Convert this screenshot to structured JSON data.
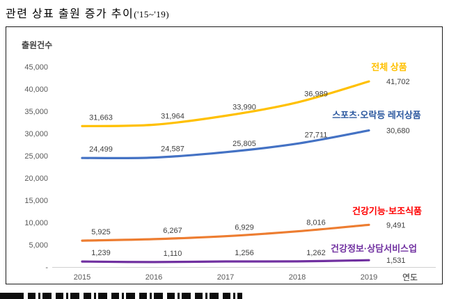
{
  "title": {
    "main": "관련 상표 출원 증가 추이",
    "period": "('15~'19)"
  },
  "chart": {
    "y_axis_title": "출원건수",
    "x_axis_title": "연도"
  },
  "chart_data": {
    "type": "line",
    "title": "관련 상표 출원 증가 추이('15~'19)",
    "xlabel": "연도",
    "ylabel": "출원건수",
    "categories": [
      "2015",
      "2016",
      "2017",
      "2018",
      "2019"
    ],
    "ylim": [
      0,
      45000
    ],
    "y_tick_step": 5000,
    "y_tick_labels": [
      "45,000",
      "40,000",
      "35,000",
      "30,000",
      "25,000",
      "20,000",
      "15,000",
      "10,000",
      "5,000",
      "-"
    ],
    "grid": false,
    "legend_position": "inline-right-of-lines",
    "series": [
      {
        "name": "전체 상품",
        "values": [
          31663,
          31964,
          33990,
          36989,
          41702
        ],
        "line_color": "#FFC000",
        "label_color": "#FFC000"
      },
      {
        "name": "스포츠·오락등 레저상품",
        "values": [
          24499,
          24587,
          25805,
          27711,
          30680
        ],
        "line_color": "#4472C4",
        "label_color": "#2E5AA0"
      },
      {
        "name": "건강기능·보조식품",
        "values": [
          5925,
          6267,
          6929,
          8016,
          9491
        ],
        "line_color": "#ED7D31",
        "label_color": "#FF0000"
      },
      {
        "name": "건강정보·상담서비스업",
        "values": [
          1239,
          1110,
          1256,
          1262,
          1531
        ],
        "line_color": "#7030A0",
        "label_color": "#7030A0"
      }
    ]
  }
}
